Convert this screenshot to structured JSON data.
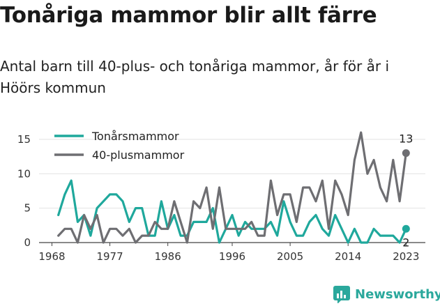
{
  "header": {
    "title": "Tonåriga mammor blir allt färre",
    "subtitle": "Antal barn till 40-plus- och tonåriga mammor, år för år i Höörs kommun"
  },
  "brand": {
    "name": "Newsworthy",
    "icon": "newsworthy-chart-icon",
    "color": "#2aa89c"
  },
  "chart_data": {
    "type": "line",
    "x_ticks": [
      "1968",
      "1977",
      "1986",
      "1996",
      "2005",
      "2014",
      "2023"
    ],
    "y_ticks": [
      "0",
      "5",
      "10",
      "15"
    ],
    "ylim": [
      0,
      16
    ],
    "xlim": [
      1966,
      2026
    ],
    "legend": "top-left",
    "grid": "horizontal",
    "series": [
      {
        "name": "Tonårsmammor",
        "color": "#1fa89c",
        "end_label": "2",
        "x": [
          1969,
          1970,
          1971,
          1972,
          1973,
          1974,
          1975,
          1976,
          1977,
          1978,
          1979,
          1980,
          1981,
          1982,
          1983,
          1984,
          1985,
          1986,
          1987,
          1988,
          1989,
          1990,
          1991,
          1992,
          1993,
          1994,
          1995,
          1996,
          1997,
          1998,
          1999,
          2000,
          2001,
          2002,
          2003,
          2004,
          2005,
          2006,
          2007,
          2008,
          2009,
          2010,
          2011,
          2012,
          2013,
          2014,
          2015,
          2016,
          2017,
          2018,
          2019,
          2020,
          2021,
          2022,
          2023
        ],
        "y": [
          4,
          7,
          9,
          3,
          4,
          1,
          5,
          6,
          7,
          7,
          6,
          3,
          5,
          5,
          1,
          1,
          6,
          2,
          4,
          1,
          1,
          3,
          3,
          3,
          5,
          0,
          2,
          4,
          1,
          3,
          2,
          2,
          2,
          3,
          1,
          6,
          3,
          1,
          1,
          3,
          4,
          2,
          1,
          4,
          2,
          0,
          2,
          0,
          0,
          2,
          1,
          1,
          1,
          0,
          2
        ]
      },
      {
        "name": "40-plusmammor",
        "color": "#6e6e72",
        "end_label": "13",
        "x": [
          1969,
          1970,
          1971,
          1972,
          1973,
          1974,
          1975,
          1976,
          1977,
          1978,
          1979,
          1980,
          1981,
          1982,
          1983,
          1984,
          1985,
          1986,
          1987,
          1988,
          1989,
          1990,
          1991,
          1992,
          1993,
          1994,
          1995,
          1996,
          1997,
          1998,
          1999,
          2000,
          2001,
          2002,
          2003,
          2004,
          2005,
          2006,
          2007,
          2008,
          2009,
          2010,
          2011,
          2012,
          2013,
          2014,
          2015,
          2016,
          2017,
          2018,
          2019,
          2020,
          2021,
          2022,
          2023
        ],
        "y": [
          1,
          2,
          2,
          0,
          4,
          2,
          4,
          0,
          2,
          2,
          1,
          2,
          0,
          1,
          1,
          3,
          2,
          2,
          6,
          3,
          0,
          6,
          5,
          8,
          2,
          8,
          2,
          2,
          2,
          2,
          3,
          1,
          1,
          9,
          4,
          7,
          7,
          3,
          8,
          8,
          6,
          9,
          2,
          9,
          7,
          4,
          12,
          16,
          10,
          12,
          8,
          6,
          12,
          6,
          13
        ]
      }
    ]
  }
}
